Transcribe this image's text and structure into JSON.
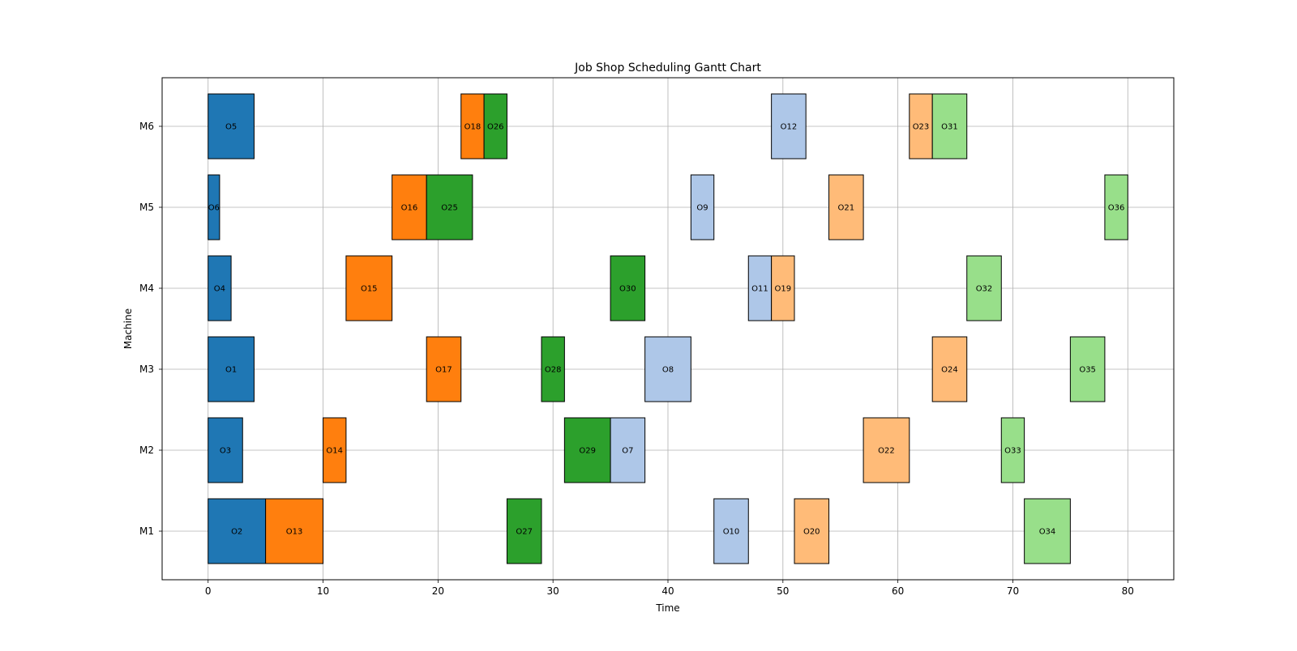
{
  "chart_data": {
    "type": "gantt",
    "title": "Job Shop Scheduling Gantt Chart",
    "xlabel": "Time",
    "ylabel": "Machine",
    "xlim": [
      -4,
      84
    ],
    "xticks": [
      0,
      10,
      20,
      30,
      40,
      50,
      60,
      70,
      80
    ],
    "machines": [
      "M1",
      "M2",
      "M3",
      "M4",
      "M5",
      "M6"
    ],
    "grid": true,
    "job_colors": [
      "#1f77b4",
      "#ff7f0e",
      "#2ca02c",
      "#aec7e8",
      "#ffbb78",
      "#98df8a"
    ],
    "operations": [
      {
        "label": "O1",
        "machine": "M3",
        "start": 0,
        "end": 4,
        "job": 0
      },
      {
        "label": "O2",
        "machine": "M1",
        "start": 0,
        "end": 5,
        "job": 0
      },
      {
        "label": "O3",
        "machine": "M2",
        "start": 0,
        "end": 3,
        "job": 0
      },
      {
        "label": "O4",
        "machine": "M4",
        "start": 0,
        "end": 2,
        "job": 0
      },
      {
        "label": "O5",
        "machine": "M6",
        "start": 0,
        "end": 4,
        "job": 0
      },
      {
        "label": "O6",
        "machine": "M5",
        "start": 0,
        "end": 1,
        "job": 0
      },
      {
        "label": "O13",
        "machine": "M1",
        "start": 5,
        "end": 10,
        "job": 1
      },
      {
        "label": "O14",
        "machine": "M2",
        "start": 10,
        "end": 12,
        "job": 1
      },
      {
        "label": "O15",
        "machine": "M4",
        "start": 12,
        "end": 16,
        "job": 1
      },
      {
        "label": "O16",
        "machine": "M5",
        "start": 16,
        "end": 19,
        "job": 1
      },
      {
        "label": "O17",
        "machine": "M3",
        "start": 19,
        "end": 22,
        "job": 1
      },
      {
        "label": "O18",
        "machine": "M6",
        "start": 22,
        "end": 24,
        "job": 1
      },
      {
        "label": "O25",
        "machine": "M5",
        "start": 19,
        "end": 23,
        "job": 2
      },
      {
        "label": "O26",
        "machine": "M6",
        "start": 24,
        "end": 26,
        "job": 2
      },
      {
        "label": "O27",
        "machine": "M1",
        "start": 26,
        "end": 29,
        "job": 2
      },
      {
        "label": "O28",
        "machine": "M3",
        "start": 29,
        "end": 31,
        "job": 2
      },
      {
        "label": "O29",
        "machine": "M2",
        "start": 31,
        "end": 35,
        "job": 2
      },
      {
        "label": "O30",
        "machine": "M4",
        "start": 35,
        "end": 38,
        "job": 2
      },
      {
        "label": "O7",
        "machine": "M2",
        "start": 35,
        "end": 38,
        "job": 3
      },
      {
        "label": "O8",
        "machine": "M3",
        "start": 38,
        "end": 42,
        "job": 3
      },
      {
        "label": "O9",
        "machine": "M5",
        "start": 42,
        "end": 44,
        "job": 3
      },
      {
        "label": "O10",
        "machine": "M1",
        "start": 44,
        "end": 47,
        "job": 3
      },
      {
        "label": "O11",
        "machine": "M4",
        "start": 47,
        "end": 49,
        "job": 3
      },
      {
        "label": "O12",
        "machine": "M6",
        "start": 49,
        "end": 52,
        "job": 3
      },
      {
        "label": "O19",
        "machine": "M4",
        "start": 49,
        "end": 51,
        "job": 4
      },
      {
        "label": "O20",
        "machine": "M1",
        "start": 51,
        "end": 54,
        "job": 4
      },
      {
        "label": "O21",
        "machine": "M5",
        "start": 54,
        "end": 57,
        "job": 4
      },
      {
        "label": "O22",
        "machine": "M2",
        "start": 57,
        "end": 61,
        "job": 4
      },
      {
        "label": "O23",
        "machine": "M6",
        "start": 61,
        "end": 63,
        "job": 4
      },
      {
        "label": "O24",
        "machine": "M3",
        "start": 63,
        "end": 66,
        "job": 4
      },
      {
        "label": "O31",
        "machine": "M6",
        "start": 63,
        "end": 66,
        "job": 5
      },
      {
        "label": "O32",
        "machine": "M4",
        "start": 66,
        "end": 69,
        "job": 5
      },
      {
        "label": "O33",
        "machine": "M2",
        "start": 69,
        "end": 71,
        "job": 5
      },
      {
        "label": "O34",
        "machine": "M1",
        "start": 71,
        "end": 75,
        "job": 5
      },
      {
        "label": "O35",
        "machine": "M3",
        "start": 75,
        "end": 78,
        "job": 5
      },
      {
        "label": "O36",
        "machine": "M5",
        "start": 78,
        "end": 80,
        "job": 5
      }
    ]
  }
}
